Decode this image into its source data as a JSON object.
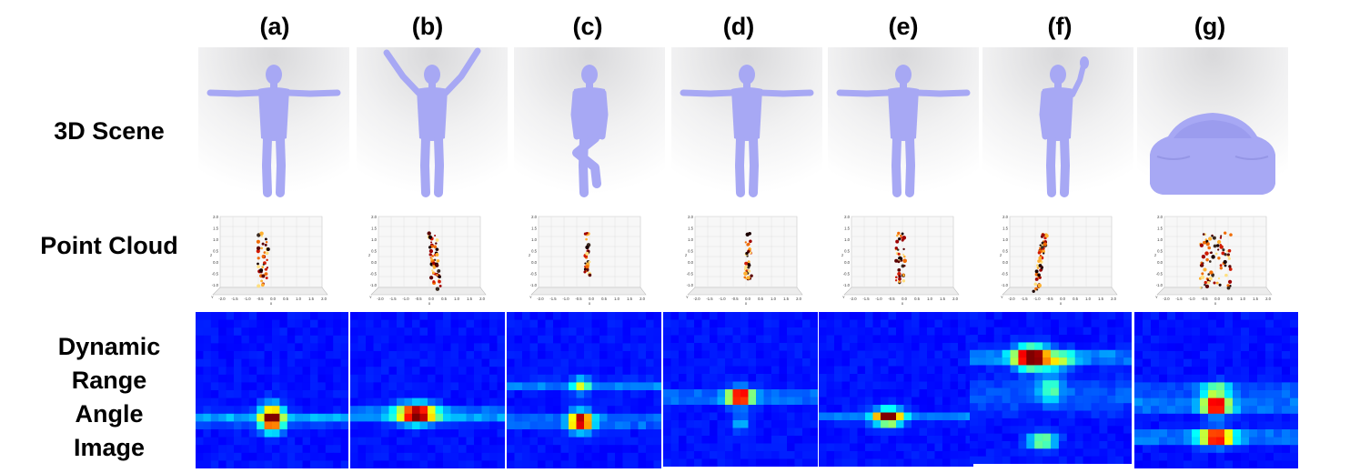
{
  "columns": [
    "(a)",
    "(b)",
    "(c)",
    "(d)",
    "(e)",
    "(f)",
    "(g)"
  ],
  "rows": {
    "scene": "3D Scene",
    "cloud": "Point Cloud",
    "rai": [
      "Dynamic",
      "Range",
      "Angle",
      "Image"
    ]
  },
  "scenes": [
    "t-pose-human",
    "arms-raised-human",
    "leg-raised-human",
    "t-pose-human",
    "t-pose-human",
    "waving-human",
    "car"
  ],
  "colors": {
    "mesh": "#a7a8f4",
    "heatmap_bg": "#00008f"
  },
  "point_cloud_axis": {
    "z_ticks": [
      "2.0",
      "1.5",
      "1.0",
      "0.5",
      "0.0",
      "-0.5",
      "-1.0"
    ],
    "x_ticks": [
      "-2.0",
      "-1.5",
      "-1.0",
      "-0.5",
      "0.0",
      "0.5",
      "1.0",
      "1.5",
      "2.0"
    ],
    "z_label": "z",
    "x_label": "x",
    "y_label": "Y"
  }
}
